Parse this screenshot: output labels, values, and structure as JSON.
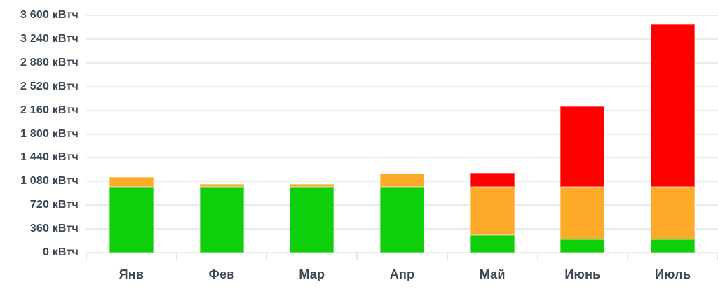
{
  "chart_data": {
    "type": "bar",
    "stacked": true,
    "title": "",
    "unit": "кВтч",
    "categories": [
      "Янв",
      "Фев",
      "Мар",
      "Апр",
      "Май",
      "Июнь",
      "Июль"
    ],
    "series": [
      {
        "name": "green",
        "color": "#0fce0a",
        "values": [
          1000,
          1000,
          1000,
          1000,
          270,
          200,
          200
        ]
      },
      {
        "name": "orange",
        "color": "#fcab28",
        "values": [
          150,
          45,
          45,
          200,
          730,
          800,
          800
        ]
      },
      {
        "name": "red",
        "color": "#fe0000",
        "values": [
          0,
          0,
          0,
          0,
          210,
          1220,
          2460
        ]
      }
    ],
    "totals": [
      1150,
      1045,
      1045,
      1200,
      1210,
      2220,
      3460
    ],
    "ylim": [
      0,
      3600
    ],
    "ytick_step": 360,
    "ytick_labels": [
      "0 кВтч",
      "360 кВтч",
      "720 кВтч",
      "1 080 кВтч",
      "1 440 кВтч",
      "1 800 кВтч",
      "2 160 кВтч",
      "2 520 кВтч",
      "2 880 кВтч",
      "3 240 кВтч",
      "3 600 кВтч"
    ],
    "grid": true,
    "legend": "none",
    "colors": {
      "grid": "#ececec",
      "axis_text": "#3d4854",
      "background": "#ffffff"
    }
  }
}
